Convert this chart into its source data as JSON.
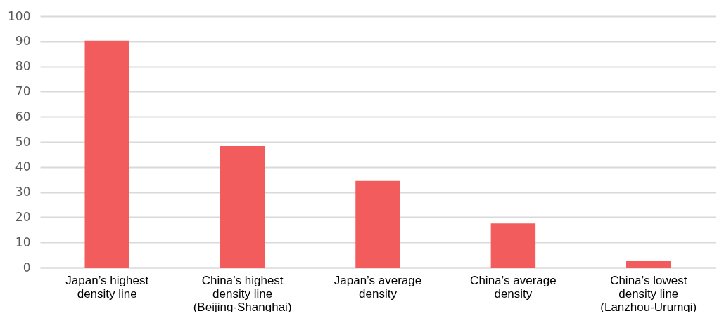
{
  "chart_data": {
    "type": "bar",
    "categories": [
      "Japan’s highest density line",
      "China’s highest density line (Beijing-Shanghai)",
      "Japan’s average density",
      "China’s average density",
      "China’s lowest density line (Lanzhou-Urumqi)"
    ],
    "values": [
      90.3,
      48.3,
      34.4,
      17.5,
      2.8
    ],
    "color": "#f25c5c",
    "ylim": [
      0,
      100
    ],
    "yticks": [
      0,
      10,
      20,
      30,
      40,
      50,
      60,
      70,
      80,
      90,
      100
    ],
    "grid": "y"
  }
}
